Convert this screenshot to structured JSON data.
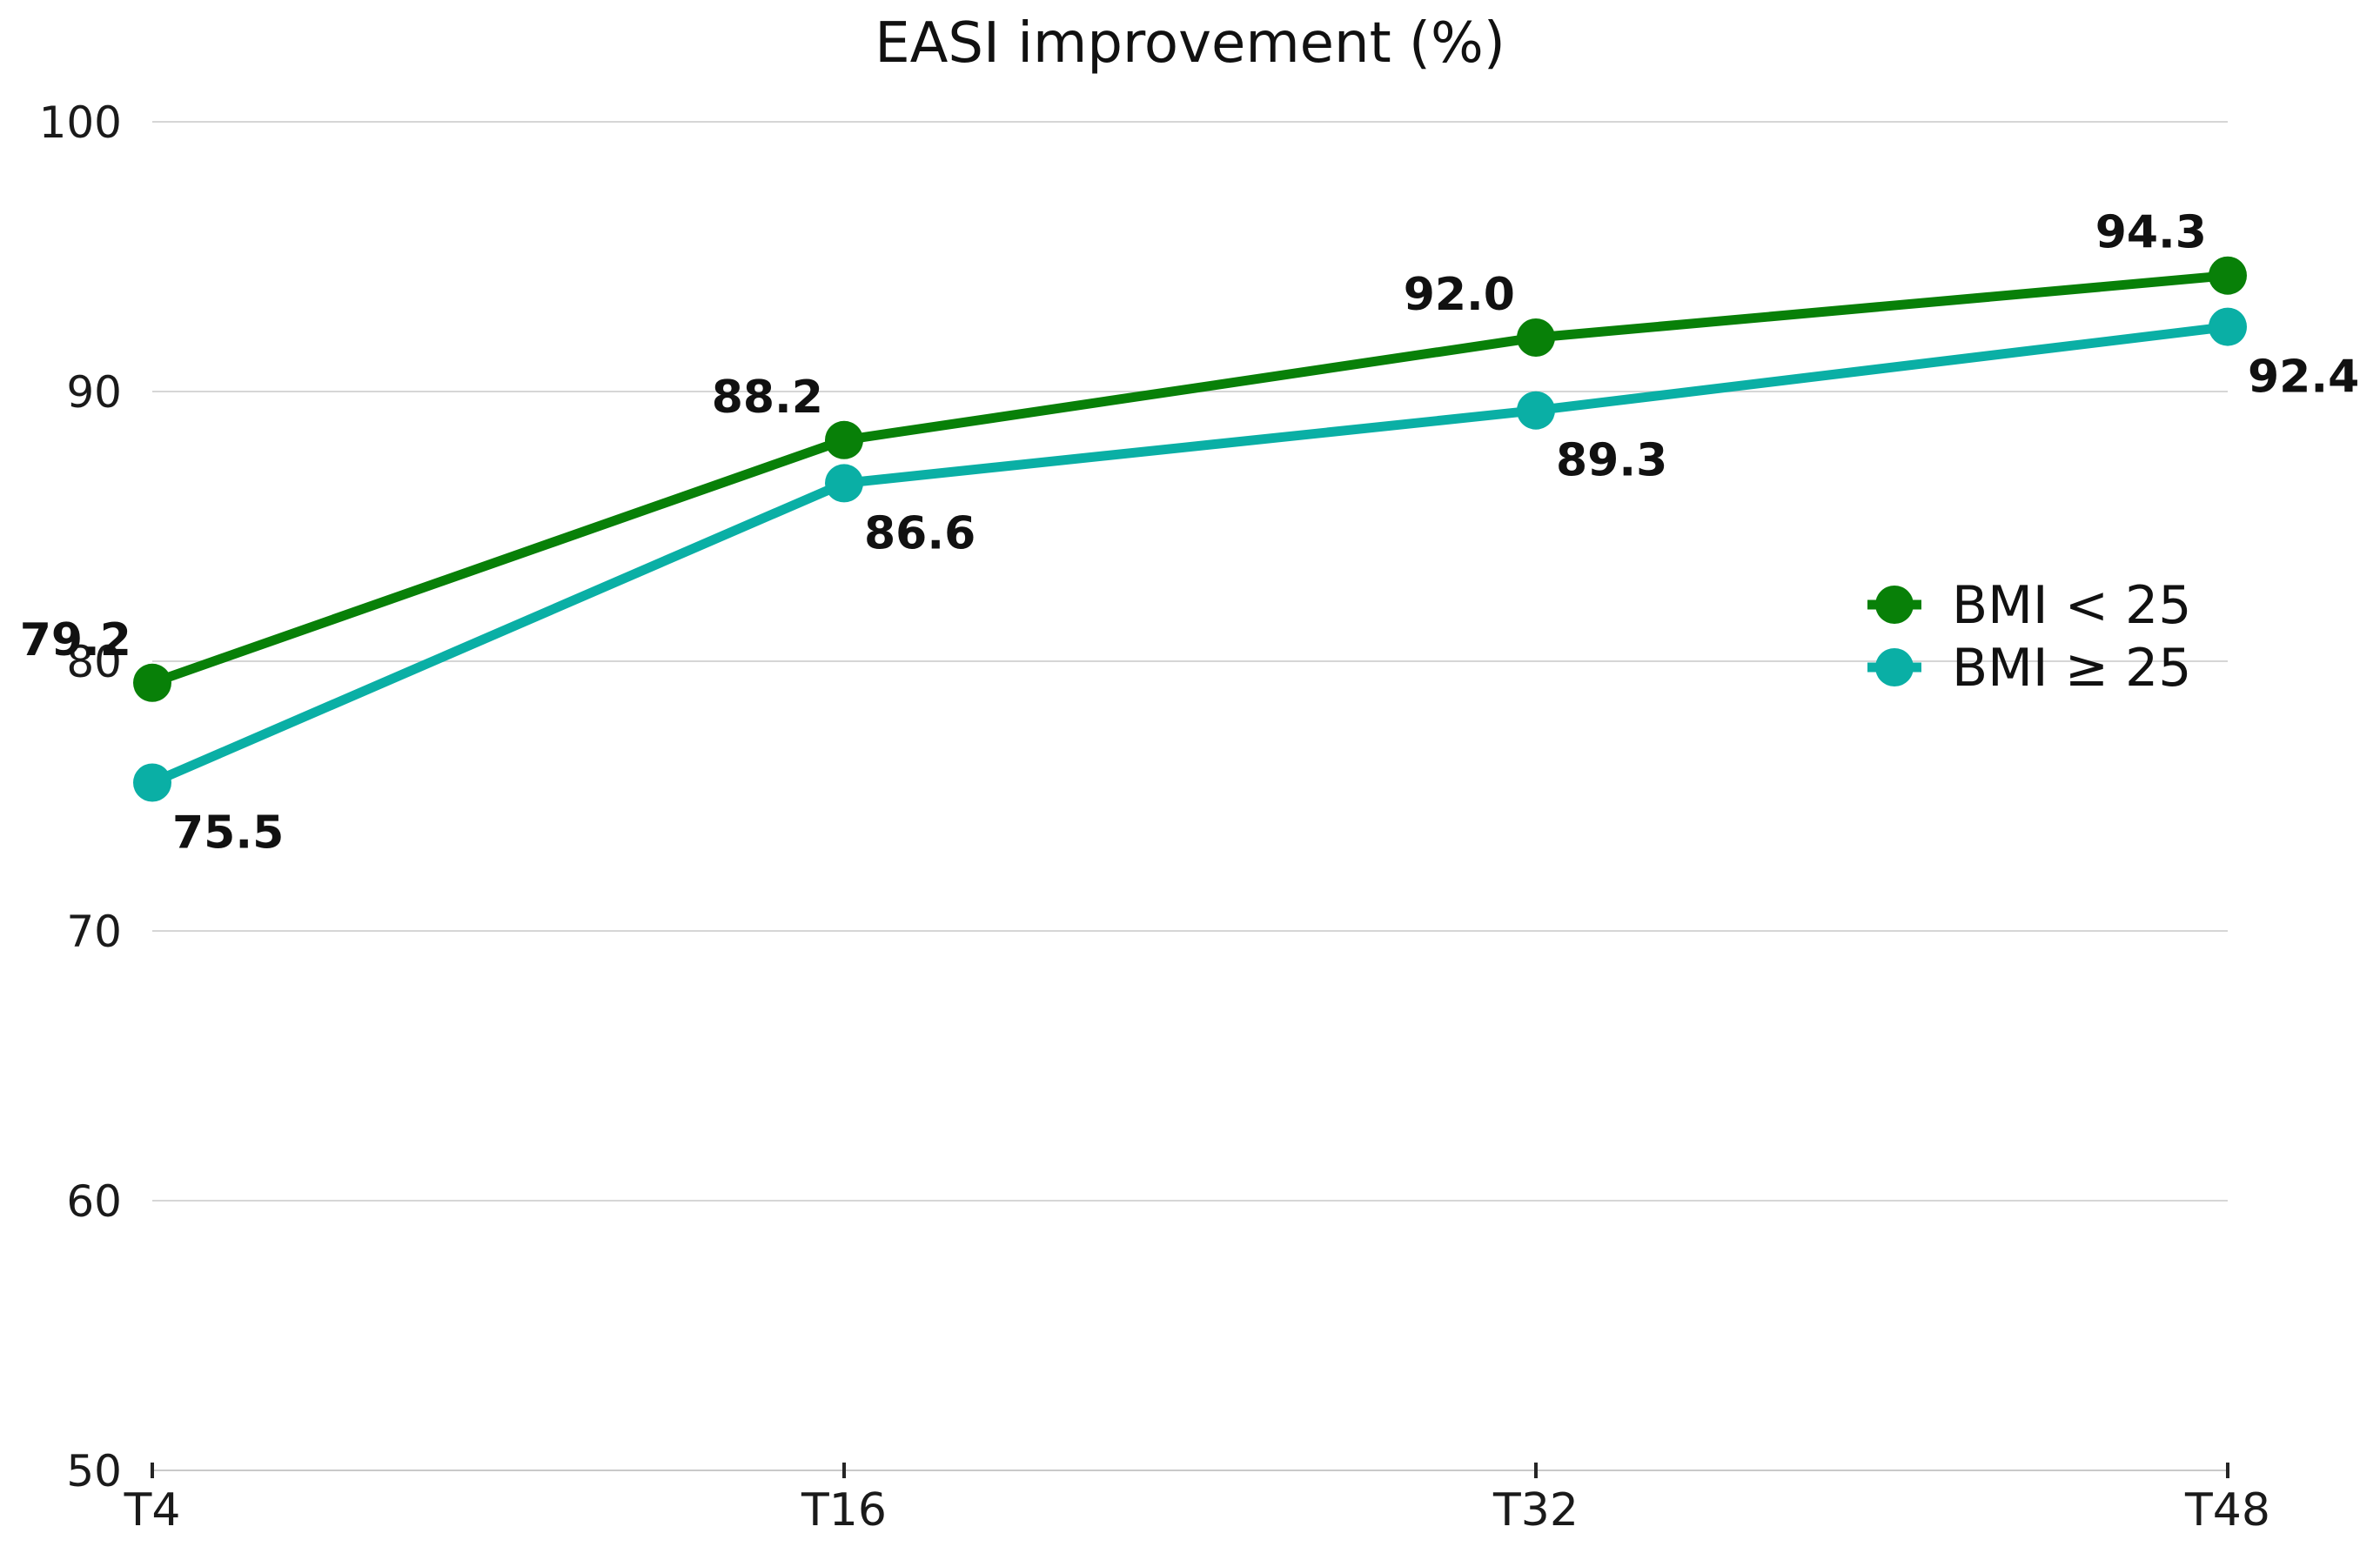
{
  "chart_data": {
    "type": "line",
    "title": "EASI improvement (%)",
    "categories": [
      "T4",
      "T16",
      "T32",
      "T48"
    ],
    "series": [
      {
        "name": "BMI < 25",
        "color": "#088008",
        "values": [
          79.2,
          88.2,
          92.0,
          94.3
        ],
        "label_placement": "above-left"
      },
      {
        "name": "BMI ≥ 25",
        "color": "#0aafa5",
        "values": [
          75.5,
          86.6,
          89.3,
          92.4
        ],
        "label_placement": "below-right"
      }
    ],
    "ylim": [
      50,
      100
    ],
    "yticks": [
      100,
      90,
      80,
      70,
      60,
      50
    ],
    "grid": true,
    "legend_position": "middle-right",
    "value_label_decimals": 1,
    "colors": {
      "gridline": "#d6d6d6",
      "axis_line": "#c9c9c9",
      "tick_mark": "#262626",
      "tick_label": "#1a1a1a",
      "value_label": "#111111",
      "legend_text": "#111111",
      "background": "#ffffff"
    }
  }
}
